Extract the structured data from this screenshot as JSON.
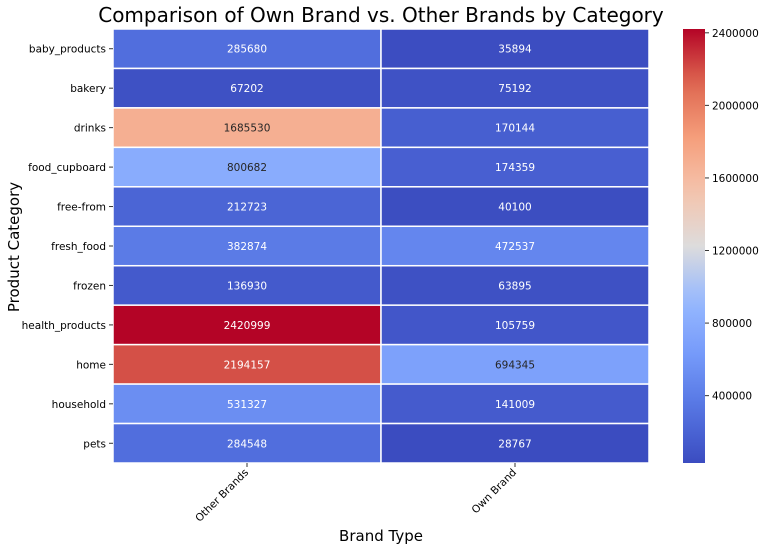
{
  "chart_data": {
    "type": "heatmap",
    "title": "Comparison of Own Brand vs. Other Brands by Category",
    "xlabel": "Brand Type",
    "ylabel": "Product Category",
    "columns": [
      "Other Brands",
      "Own Brand"
    ],
    "rows": [
      "baby_products",
      "bakery",
      "drinks",
      "food_cupboard",
      "free-from",
      "fresh_food",
      "frozen",
      "health_products",
      "home",
      "household",
      "pets"
    ],
    "values": [
      [
        285680,
        35894
      ],
      [
        67202,
        75192
      ],
      [
        1685530,
        170144
      ],
      [
        800682,
        174359
      ],
      [
        212723,
        40100
      ],
      [
        382874,
        472537
      ],
      [
        136930,
        63895
      ],
      [
        2420999,
        105759
      ],
      [
        2194157,
        694345
      ],
      [
        531327,
        141009
      ],
      [
        284548,
        28767
      ]
    ],
    "colormap": "coolwarm",
    "color_range": [
      28767,
      2420999
    ],
    "colorbar_ticks": [
      400000,
      800000,
      1200000,
      1600000,
      2000000,
      2400000
    ],
    "colorbar_tick_labels": [
      "400000",
      "800000",
      "1200000",
      "1600000",
      "2000000",
      "2400000"
    ],
    "annotations": true,
    "cell_border_color": "#ffffff"
  }
}
